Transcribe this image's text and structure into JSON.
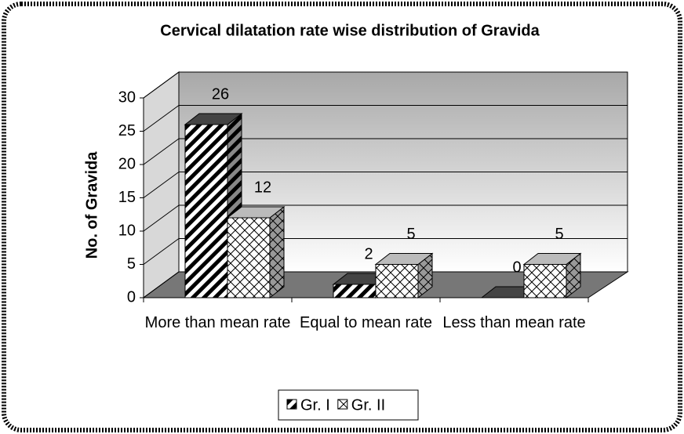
{
  "chart_data": {
    "type": "bar3d",
    "title": "Cervical dilatation rate wise distribution of Gravida",
    "y_label": "No. of Gravida",
    "categories": [
      "More than mean rate",
      "Equal to mean rate",
      "Less than mean rate"
    ],
    "series": [
      {
        "name": "Gr. I",
        "color": "#000000",
        "values": [
          26,
          2,
          0
        ]
      },
      {
        "name": "Gr. II",
        "color": "#ffffff",
        "values": [
          12,
          5,
          5
        ]
      }
    ],
    "ylim": [
      0,
      30
    ],
    "yticks": [
      0,
      5,
      10,
      15,
      20,
      25,
      30
    ],
    "grid": true,
    "legend": "bottom"
  }
}
